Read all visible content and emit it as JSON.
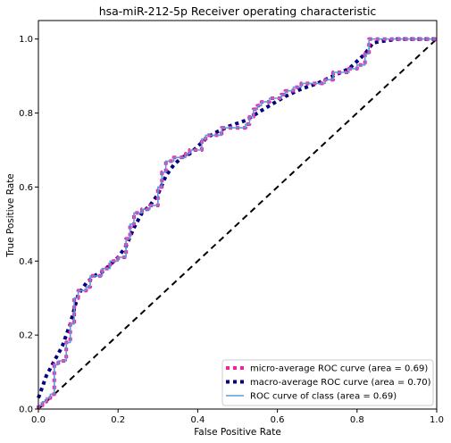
{
  "chart_data": {
    "type": "line",
    "title": "hsa-miR-212-5p Receiver operating characteristic",
    "xlabel": "False Positive Rate",
    "ylabel": "True Positive Rate",
    "xlim": [
      0,
      1
    ],
    "ylim": [
      0,
      1.05
    ],
    "x_ticks": [
      0,
      0.2,
      0.4,
      0.6,
      0.8,
      1.0
    ],
    "x_tick_labels": [
      "0.0",
      "0.2",
      "0.4",
      "0.6",
      "0.8",
      "1.0"
    ],
    "y_ticks": [
      0,
      0.2,
      0.4,
      0.6,
      0.8,
      1.0
    ],
    "y_tick_labels": [
      "0.0",
      "0.2",
      "0.4",
      "0.6",
      "0.8",
      "1.0"
    ],
    "grid": false,
    "legend_position": "bottom-right",
    "series": [
      {
        "name": "micro-average ROC curve (area = 0.69)",
        "color": "#ff1aa8",
        "style": "dotted",
        "x": [
          0,
          0,
          0.01,
          0.01,
          0.02,
          0.02,
          0.03,
          0.03,
          0.04,
          0.04,
          0.05,
          0.05,
          0.07,
          0.07,
          0.08,
          0.08,
          0.09,
          0.09,
          0.1,
          0.1,
          0.12,
          0.12,
          0.13,
          0.13,
          0.16,
          0.16,
          0.18,
          0.18,
          0.2,
          0.2,
          0.22,
          0.22,
          0.23,
          0.23,
          0.24,
          0.24,
          0.26,
          0.26,
          0.28,
          0.28,
          0.3,
          0.3,
          0.31,
          0.31,
          0.32,
          0.32,
          0.34,
          0.34,
          0.37,
          0.37,
          0.38,
          0.38,
          0.41,
          0.41,
          0.42,
          0.42,
          0.46,
          0.46,
          0.52,
          0.52,
          0.53,
          0.53,
          0.54,
          0.54,
          0.55,
          0.55,
          0.56,
          0.56,
          0.58,
          0.58,
          0.61,
          0.61,
          0.62,
          0.62,
          0.64,
          0.64,
          0.66,
          0.66,
          0.72,
          0.72,
          0.74,
          0.74,
          0.78,
          0.78,
          0.8,
          0.8,
          0.82,
          0.82,
          0.83,
          0.83,
          0.95,
          0.95,
          1.0
        ],
        "y": [
          0,
          0.01,
          0.01,
          0.02,
          0.02,
          0.03,
          0.03,
          0.04,
          0.04,
          0.12,
          0.12,
          0.13,
          0.13,
          0.18,
          0.18,
          0.23,
          0.23,
          0.3,
          0.3,
          0.32,
          0.32,
          0.33,
          0.33,
          0.36,
          0.36,
          0.38,
          0.38,
          0.4,
          0.4,
          0.41,
          0.41,
          0.46,
          0.46,
          0.5,
          0.5,
          0.53,
          0.53,
          0.54,
          0.54,
          0.55,
          0.55,
          0.6,
          0.6,
          0.64,
          0.64,
          0.67,
          0.67,
          0.68,
          0.68,
          0.69,
          0.69,
          0.7,
          0.7,
          0.73,
          0.73,
          0.74,
          0.74,
          0.76,
          0.76,
          0.77,
          0.77,
          0.79,
          0.79,
          0.81,
          0.81,
          0.82,
          0.82,
          0.83,
          0.83,
          0.84,
          0.84,
          0.85,
          0.85,
          0.86,
          0.86,
          0.87,
          0.87,
          0.88,
          0.88,
          0.89,
          0.89,
          0.91,
          0.91,
          0.92,
          0.92,
          0.93,
          0.93,
          0.96,
          0.96,
          1.0,
          1.0,
          1.0,
          1.0
        ]
      },
      {
        "name": "macro-average ROC curve (area = 0.70)",
        "color": "#000080",
        "style": "dotted",
        "x": [
          0,
          0.01,
          0.02,
          0.03,
          0.04,
          0.05,
          0.06,
          0.07,
          0.08,
          0.09,
          0.1,
          0.12,
          0.14,
          0.16,
          0.18,
          0.2,
          0.22,
          0.24,
          0.26,
          0.28,
          0.3,
          0.32,
          0.34,
          0.36,
          0.38,
          0.4,
          0.42,
          0.44,
          0.46,
          0.48,
          0.52,
          0.55,
          0.58,
          0.62,
          0.66,
          0.7,
          0.74,
          0.78,
          0.8,
          0.82,
          0.84,
          0.9,
          0.95,
          1.0
        ],
        "y": [
          0.03,
          0.06,
          0.09,
          0.11,
          0.13,
          0.15,
          0.17,
          0.2,
          0.23,
          0.27,
          0.31,
          0.34,
          0.36,
          0.37,
          0.39,
          0.41,
          0.44,
          0.49,
          0.53,
          0.55,
          0.58,
          0.63,
          0.66,
          0.68,
          0.69,
          0.71,
          0.73,
          0.745,
          0.755,
          0.765,
          0.78,
          0.8,
          0.82,
          0.845,
          0.865,
          0.88,
          0.9,
          0.92,
          0.94,
          0.96,
          0.99,
          1.0,
          1.0,
          1.0
        ]
      },
      {
        "name": "ROC curve of class (area = 0.69)",
        "color": "#5b9bd5",
        "style": "solid",
        "x": [
          0,
          0,
          0.01,
          0.01,
          0.02,
          0.02,
          0.03,
          0.03,
          0.04,
          0.04,
          0.05,
          0.05,
          0.07,
          0.07,
          0.08,
          0.08,
          0.09,
          0.09,
          0.1,
          0.1,
          0.12,
          0.12,
          0.13,
          0.13,
          0.16,
          0.16,
          0.18,
          0.18,
          0.2,
          0.2,
          0.22,
          0.22,
          0.23,
          0.23,
          0.24,
          0.24,
          0.26,
          0.26,
          0.28,
          0.28,
          0.3,
          0.3,
          0.31,
          0.31,
          0.32,
          0.32,
          0.34,
          0.34,
          0.37,
          0.37,
          0.38,
          0.38,
          0.41,
          0.41,
          0.42,
          0.42,
          0.46,
          0.46,
          0.52,
          0.52,
          0.53,
          0.53,
          0.54,
          0.54,
          0.55,
          0.55,
          0.56,
          0.56,
          0.58,
          0.58,
          0.61,
          0.61,
          0.62,
          0.62,
          0.64,
          0.64,
          0.66,
          0.66,
          0.72,
          0.72,
          0.74,
          0.74,
          0.78,
          0.78,
          0.8,
          0.8,
          0.82,
          0.82,
          0.83,
          0.83,
          0.95,
          0.95,
          1.0
        ],
        "y": [
          0,
          0.01,
          0.01,
          0.02,
          0.02,
          0.03,
          0.03,
          0.04,
          0.04,
          0.12,
          0.12,
          0.13,
          0.13,
          0.18,
          0.18,
          0.23,
          0.23,
          0.3,
          0.3,
          0.32,
          0.32,
          0.33,
          0.33,
          0.36,
          0.36,
          0.38,
          0.38,
          0.4,
          0.4,
          0.41,
          0.41,
          0.46,
          0.46,
          0.5,
          0.5,
          0.53,
          0.53,
          0.54,
          0.54,
          0.55,
          0.55,
          0.6,
          0.6,
          0.64,
          0.64,
          0.67,
          0.67,
          0.68,
          0.68,
          0.69,
          0.69,
          0.7,
          0.7,
          0.73,
          0.73,
          0.74,
          0.74,
          0.76,
          0.76,
          0.77,
          0.77,
          0.79,
          0.79,
          0.81,
          0.81,
          0.82,
          0.82,
          0.83,
          0.83,
          0.84,
          0.84,
          0.85,
          0.85,
          0.86,
          0.86,
          0.87,
          0.87,
          0.88,
          0.88,
          0.89,
          0.89,
          0.91,
          0.91,
          0.92,
          0.92,
          0.93,
          0.93,
          0.96,
          0.96,
          1.0,
          1.0,
          1.0,
          1.0
        ]
      }
    ],
    "reference_line": {
      "x": [
        0,
        1
      ],
      "y": [
        0,
        1
      ],
      "color": "#000000",
      "style": "dashed"
    }
  }
}
